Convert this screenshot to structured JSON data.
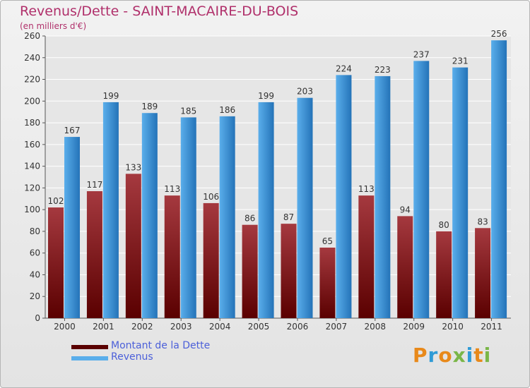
{
  "header": {
    "title": "Revenus/Dette - SAINT-MACAIRE-DU-BOIS",
    "subtitle": "(en milliers d'€)"
  },
  "legend": {
    "debt_label": "Montant de la Dette",
    "revenue_label": "Revenus"
  },
  "logo": {
    "text": "Proxiti"
  },
  "colors": {
    "debt_top": "#a5393f",
    "debt_bottom": "#5a0000",
    "revenue_top": "#5aaeeb",
    "revenue_bottom": "#2473b8",
    "title": "#b0306b",
    "legend_text": "#4b5fd9"
  },
  "chart_data": {
    "type": "bar",
    "title": "Revenus/Dette - SAINT-MACAIRE-DU-BOIS",
    "subtitle": "(en milliers d'€)",
    "categories": [
      "2000",
      "2001",
      "2002",
      "2003",
      "2004",
      "2005",
      "2006",
      "2007",
      "2008",
      "2009",
      "2010",
      "2011"
    ],
    "series": [
      {
        "name": "Montant de la Dette",
        "values": [
          102,
          117,
          133,
          113,
          106,
          86,
          87,
          65,
          113,
          94,
          80,
          83
        ]
      },
      {
        "name": "Revenus",
        "values": [
          167,
          199,
          189,
          185,
          186,
          199,
          203,
          224,
          223,
          237,
          231,
          256
        ]
      }
    ],
    "ylim": [
      0,
      260
    ],
    "yticks": [
      0,
      20,
      40,
      60,
      80,
      100,
      120,
      140,
      160,
      180,
      200,
      220,
      240,
      260
    ],
    "grid": true,
    "legend_position": "bottom-left"
  }
}
